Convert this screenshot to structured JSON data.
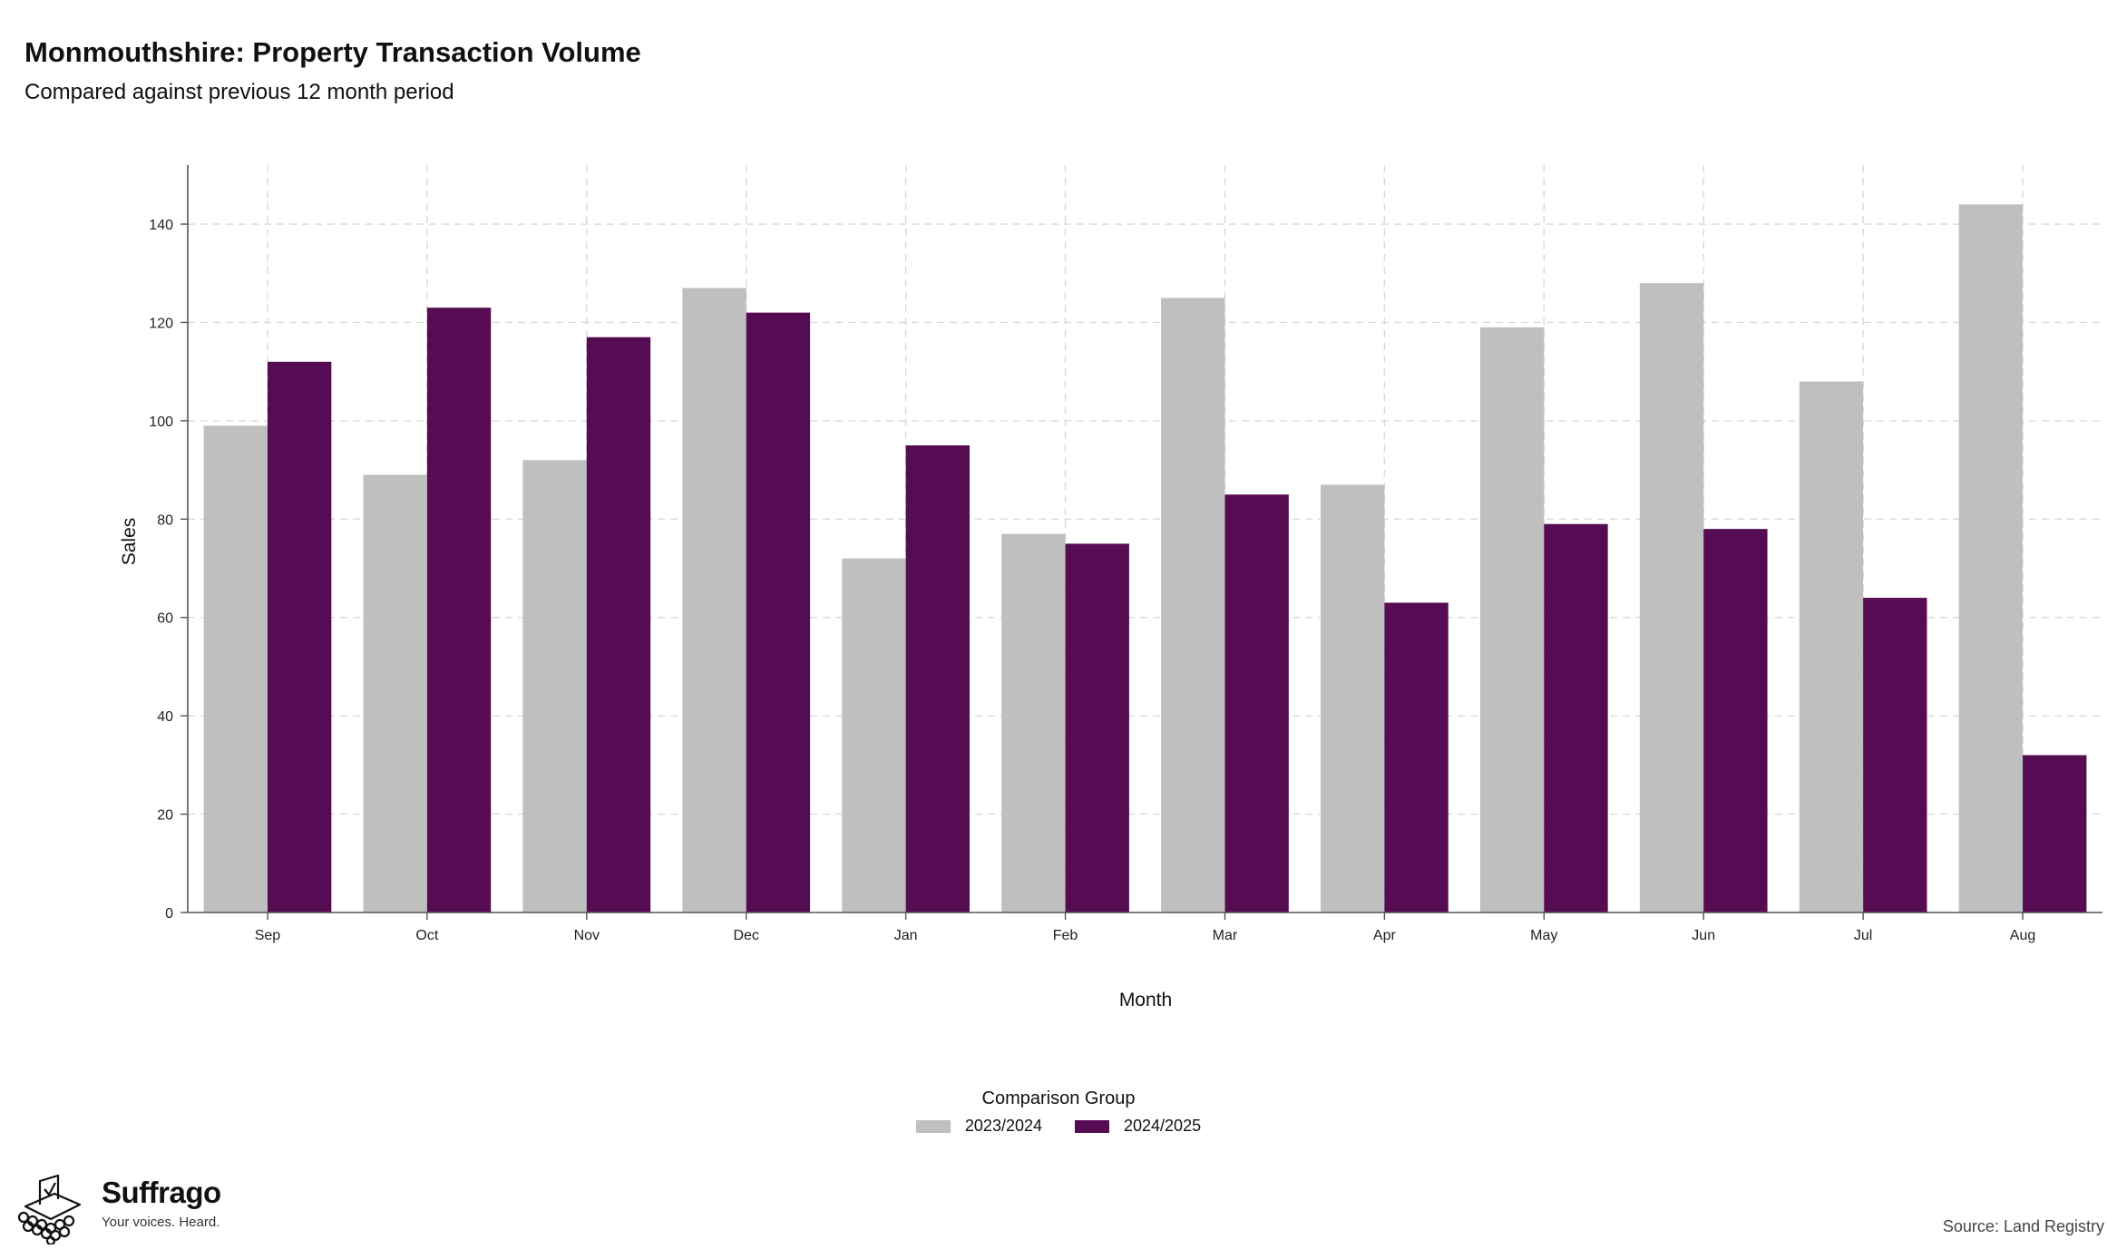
{
  "header": {
    "title": "Monmouthshire: Property Transaction Volume",
    "subtitle": "Compared against previous 12 month period"
  },
  "chart_data": {
    "type": "bar",
    "title": "Monmouthshire: Property Transaction Volume",
    "subtitle": "Compared against previous 12 month period",
    "xlabel": "Month",
    "ylabel": "Sales",
    "categories": [
      "Sep",
      "Oct",
      "Nov",
      "Dec",
      "Jan",
      "Feb",
      "Mar",
      "Apr",
      "May",
      "Jun",
      "Jul",
      "Aug"
    ],
    "series": [
      {
        "name": "2023/2024",
        "color": "#bfbfbf",
        "values": [
          99,
          89,
          92,
          127,
          72,
          77,
          125,
          87,
          119,
          128,
          108,
          144
        ]
      },
      {
        "name": "2024/2025",
        "color": "#560c53",
        "values": [
          112,
          123,
          117,
          122,
          95,
          75,
          85,
          63,
          79,
          78,
          64,
          32
        ]
      }
    ],
    "ylim": [
      0,
      152
    ],
    "yticks": [
      0,
      20,
      40,
      60,
      80,
      100,
      120,
      140
    ],
    "grid": true,
    "legend_title": "Comparison Group",
    "legend_position": "bottom"
  },
  "branding": {
    "name": "Suffrago",
    "tagline": "Your voices. Heard.",
    "logo_icon": "ballot-box-icon"
  },
  "footer": {
    "source": "Source: Land Registry"
  }
}
